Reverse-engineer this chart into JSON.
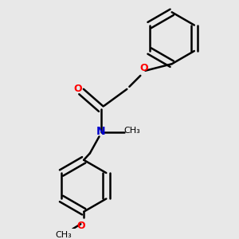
{
  "background_color": "#e8e8e8",
  "bond_color": "#000000",
  "atom_colors": {
    "O": "#ff0000",
    "N": "#0000cc",
    "C": "#000000"
  },
  "line_width": 1.8,
  "font_size": 9,
  "figsize": [
    3.0,
    3.0
  ],
  "dpi": 100
}
